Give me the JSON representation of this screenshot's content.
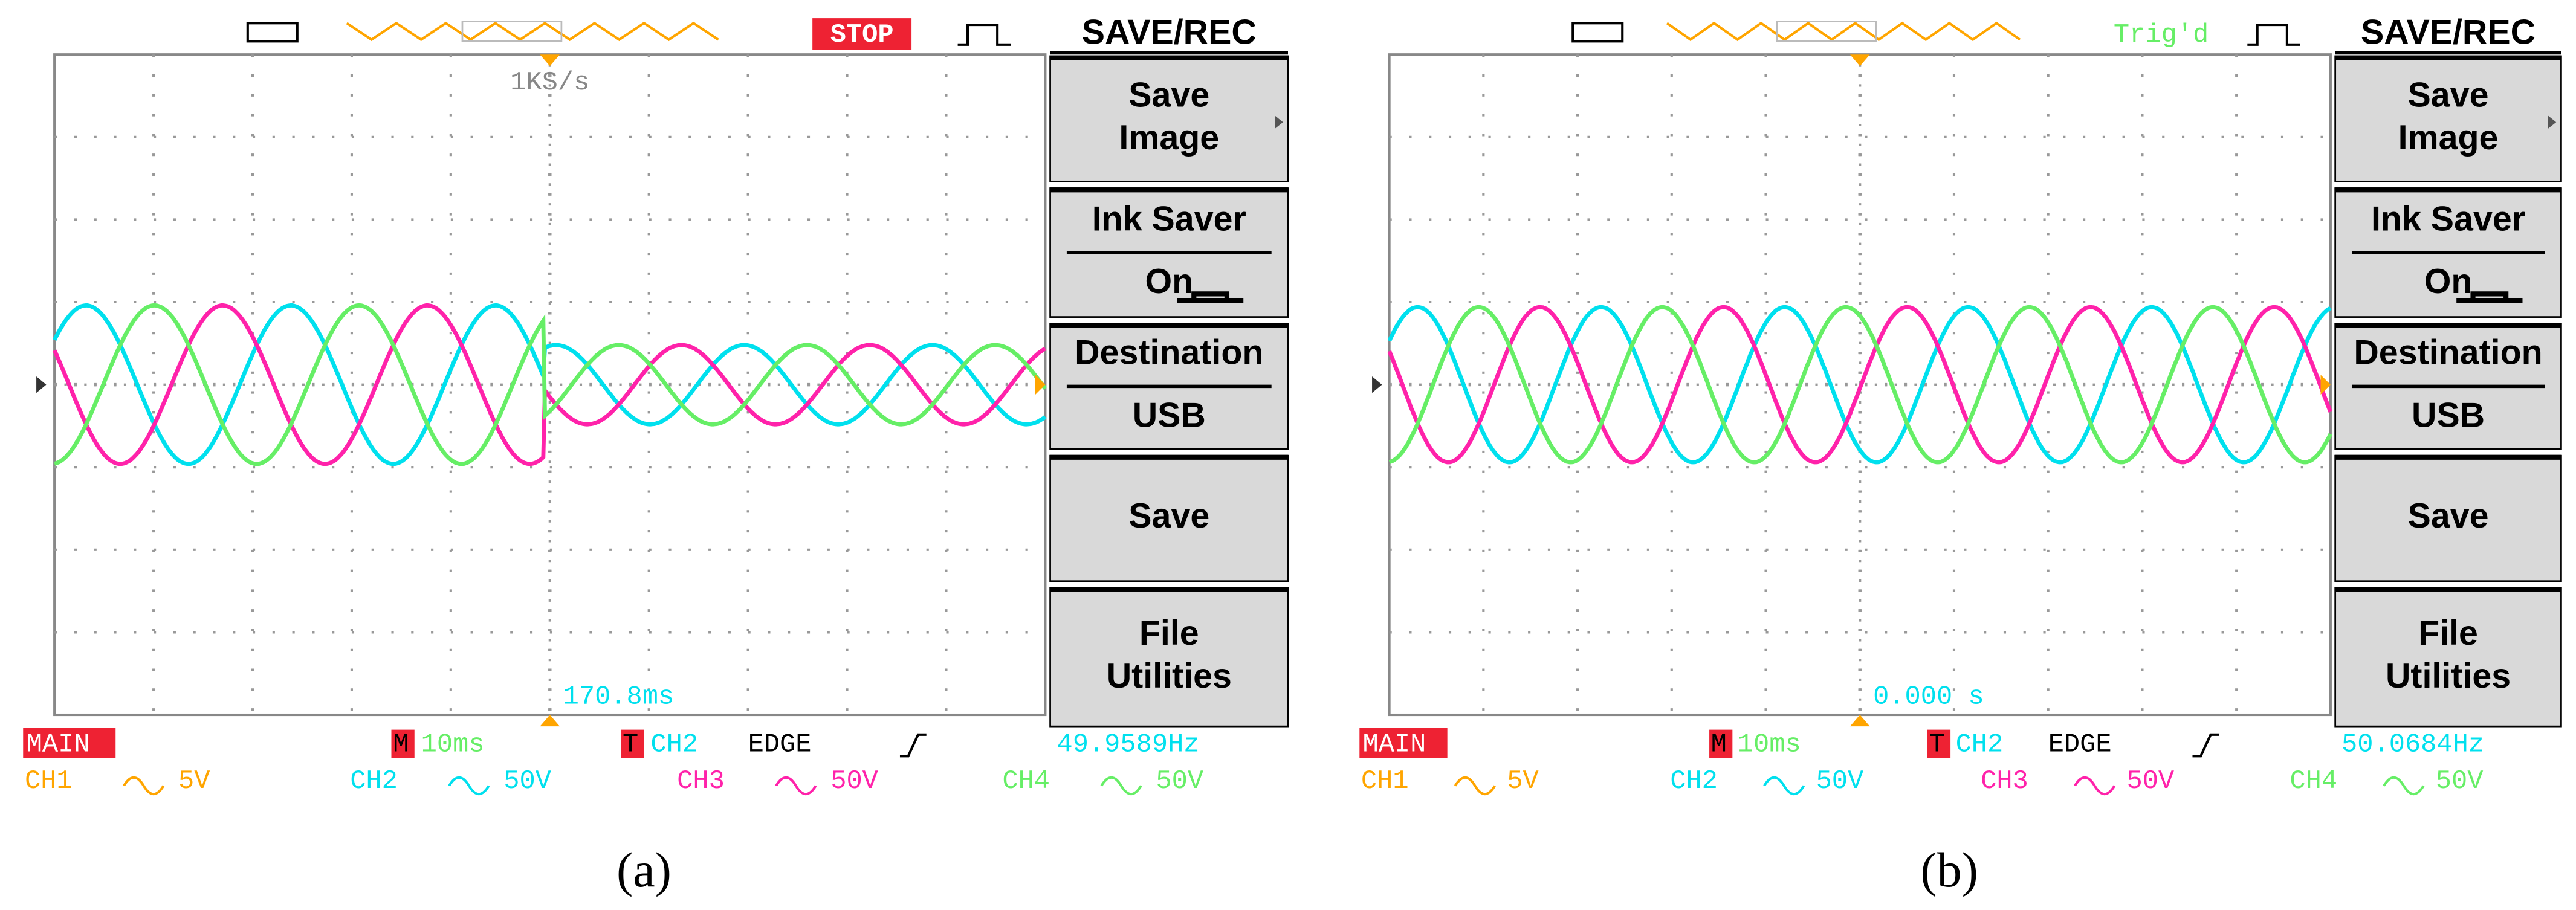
{
  "panels": [
    {
      "status": "STOP",
      "sample_rate": "1KS/s",
      "menu_title": "SAVE/REC",
      "menu": [
        {
          "lines": [
            "Save",
            "Image"
          ]
        },
        {
          "lines": [
            "Ink Saver",
            "On"
          ]
        },
        {
          "lines": [
            "Destination",
            "USB"
          ]
        },
        {
          "lines": [
            "Save"
          ]
        },
        {
          "lines": [
            "File",
            "Utilities"
          ]
        }
      ],
      "trigger_position": "170.8ms",
      "mode": "MAIN",
      "timebase_marker": "M",
      "timebase": "10ms",
      "trigger_marker": "T",
      "trigger_source": "CH2",
      "trigger_type": "EDGE",
      "frequency": "49.9589Hz",
      "channels": [
        {
          "name": "CH1",
          "scale": "5V"
        },
        {
          "name": "CH2",
          "scale": "50V"
        },
        {
          "name": "CH3",
          "scale": "50V"
        },
        {
          "name": "CH4",
          "scale": "50V"
        }
      ],
      "caption": "(a)"
    },
    {
      "status": "Trig'd",
      "menu_title": "SAVE/REC",
      "menu": [
        {
          "lines": [
            "Save",
            "Image"
          ]
        },
        {
          "lines": [
            "Ink Saver",
            "On"
          ]
        },
        {
          "lines": [
            "Destination",
            "USB"
          ]
        },
        {
          "lines": [
            "Save"
          ]
        },
        {
          "lines": [
            "File",
            "Utilities"
          ]
        }
      ],
      "trigger_position": "0.000 s",
      "mode": "MAIN",
      "timebase_marker": "M",
      "timebase": "10ms",
      "trigger_marker": "T",
      "trigger_source": "CH2",
      "trigger_type": "EDGE",
      "frequency": "50.0684Hz",
      "channels": [
        {
          "name": "CH1",
          "scale": "5V"
        },
        {
          "name": "CH2",
          "scale": "50V"
        },
        {
          "name": "CH3",
          "scale": "50V"
        },
        {
          "name": "CH4",
          "scale": "50V"
        }
      ],
      "caption": "(b)"
    }
  ]
}
